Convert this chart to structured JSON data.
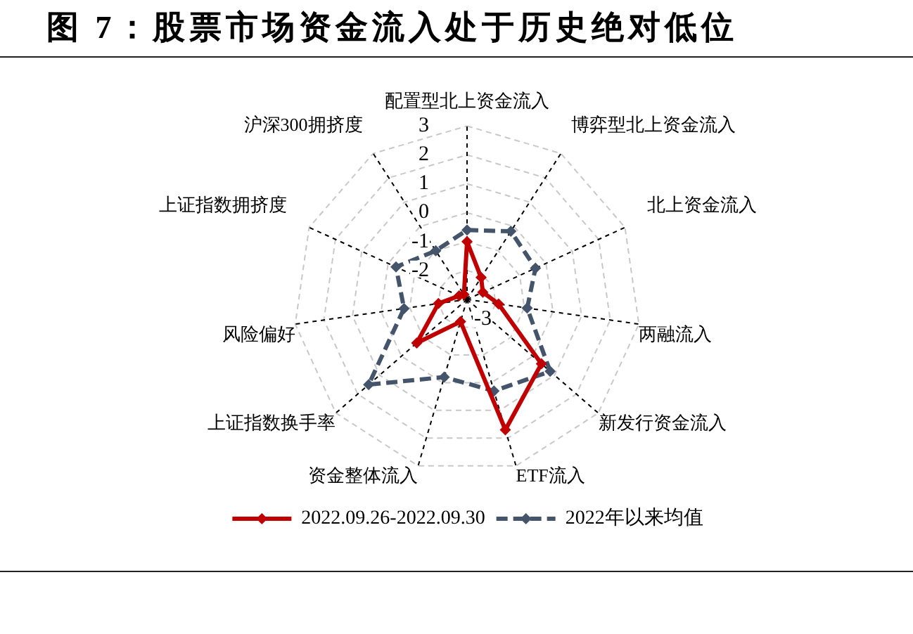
{
  "chart_data": {
    "type": "radar",
    "title": "图 7：股票市场资金流入处于历史绝对低位",
    "categories": [
      "配置型北上资金流入",
      "博弈型北上资金流入",
      "北上资金流入",
      "两融流入",
      "新发行资金流入",
      "ETF流入",
      "资金整体流入",
      "上证指数换手率",
      "风险偏好",
      "上证指数拥挤度",
      "沪深300拥挤度"
    ],
    "series": [
      {
        "name": "2022.09.26-2022.09.30",
        "color": "#c00000",
        "line_style": "solid",
        "values": [
          -1.0,
          -2.1,
          -2.4,
          -1.9,
          0.4,
          1.7,
          -2.2,
          -0.7,
          -2.0,
          -2.7,
          -2.8
        ]
      },
      {
        "name": "2022年以来均值",
        "color": "#44546a",
        "line_style": "dashed",
        "values": [
          -0.6,
          -0.2,
          -0.4,
          -0.9,
          0.8,
          0.3,
          -0.2,
          1.5,
          -0.8,
          -0.3,
          -1.0
        ]
      }
    ],
    "ylim": [
      -3,
      3
    ],
    "yticks": [
      -3,
      -2,
      -1,
      0,
      1,
      2,
      3
    ],
    "grid": true,
    "legend": "bottom",
    "marker": "diamond"
  }
}
